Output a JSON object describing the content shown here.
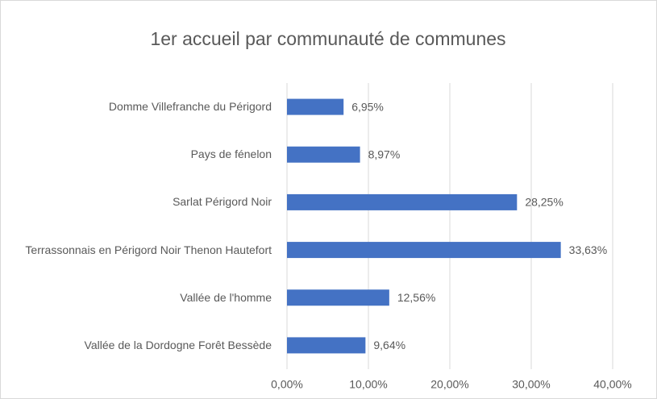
{
  "chart_data": {
    "type": "hbar",
    "title": "1er accueil par communauté de communes",
    "categories": [
      "Domme Villefranche du Périgord",
      "Pays de fénelon",
      "Sarlat Périgord Noir",
      "Terrassonnais en Périgord Noir Thenon Hautefort",
      "Vallée de l'homme",
      "Vallée de la Dordogne Forêt Bessède"
    ],
    "values": [
      6.95,
      8.97,
      28.25,
      33.63,
      12.56,
      9.64
    ],
    "value_labels": [
      "6,95%",
      "8,97%",
      "28,25%",
      "33,63%",
      "12,56%",
      "9,64%"
    ],
    "color": "#4472c4",
    "xlim": [
      0,
      40
    ],
    "xticks": [
      {
        "value": 0,
        "label": "0,00%"
      },
      {
        "value": 10,
        "label": "10,00%"
      },
      {
        "value": 20,
        "label": "20,00%"
      },
      {
        "value": 30,
        "label": "30,00%"
      },
      {
        "value": 40,
        "label": "40,00%"
      }
    ],
    "grid": true
  }
}
